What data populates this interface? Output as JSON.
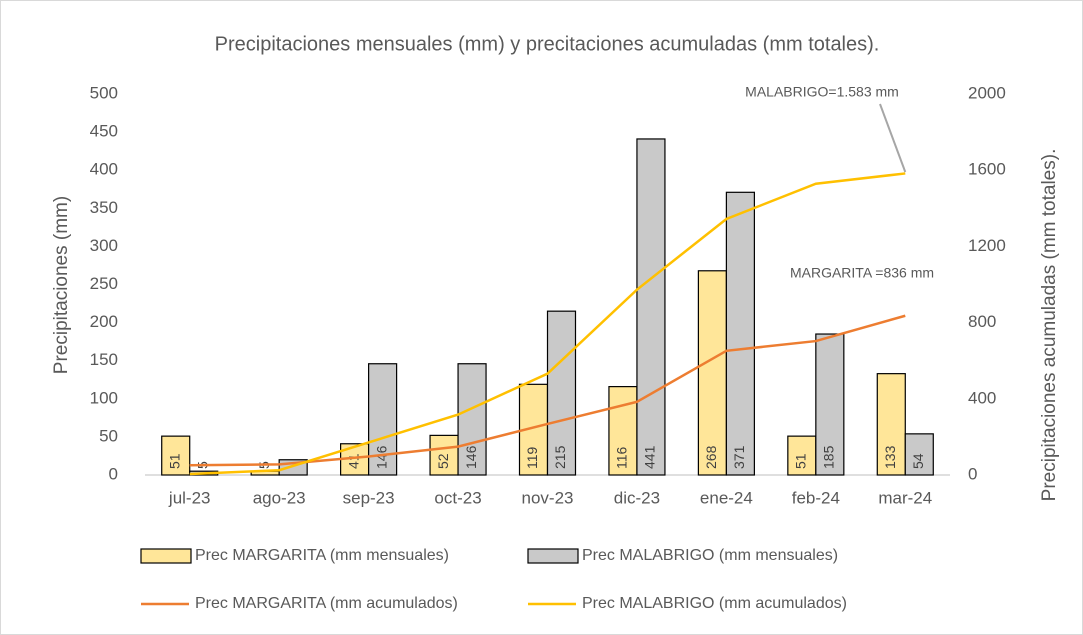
{
  "chart_data": {
    "type": "bar",
    "title": "Precipitaciones mensuales (mm) y precitaciones acumuladas (mm totales).",
    "y_label": "Precipitaciones (mm)",
    "y2_label": "Precipitaciones acumuladas (mm totales).",
    "categories": [
      "jul-23",
      "ago-23",
      "sep-23",
      "oct-23",
      "nov-23",
      "dic-23",
      "ene-24",
      "feb-24",
      "mar-24"
    ],
    "ylim": [
      0,
      500
    ],
    "yticks": [
      0,
      50,
      100,
      150,
      200,
      250,
      300,
      350,
      400,
      450,
      500
    ],
    "y2lim": [
      0,
      2000
    ],
    "y2ticks": [
      0,
      400,
      800,
      1200,
      1600,
      2000
    ],
    "series": [
      {
        "name": "Prec MARGARITA (mm mensuales)",
        "type": "bar",
        "color": "#FFE699",
        "values": [
          51,
          5,
          41,
          52,
          119,
          116,
          268,
          51,
          133
        ]
      },
      {
        "name": "Prec MALABRIGO (mm mensuales)",
        "type": "bar",
        "color": "#C9C9C9",
        "values": [
          5,
          20,
          146,
          146,
          215,
          441,
          371,
          185,
          54
        ],
        "value_labels": [
          "5",
          null,
          "146",
          "146",
          "215",
          "441",
          "371",
          "185",
          "54"
        ]
      },
      {
        "name": "Prec MARGARITA (mm acumulados)",
        "type": "line",
        "axis": "y2",
        "color": "#ED7D31",
        "values": [
          51,
          56,
          97,
          149,
          268,
          384,
          652,
          703,
          836
        ]
      },
      {
        "name": "Prec MALABRIGO (mm acumulados)",
        "type": "line",
        "axis": "y2",
        "color": "#FFC000",
        "values": [
          5,
          25,
          171,
          317,
          532,
          973,
          1344,
          1529,
          1583
        ]
      }
    ],
    "annotations": [
      "MALABRIGO=1.583 mm",
      "MARGARITA =836 mm"
    ]
  }
}
